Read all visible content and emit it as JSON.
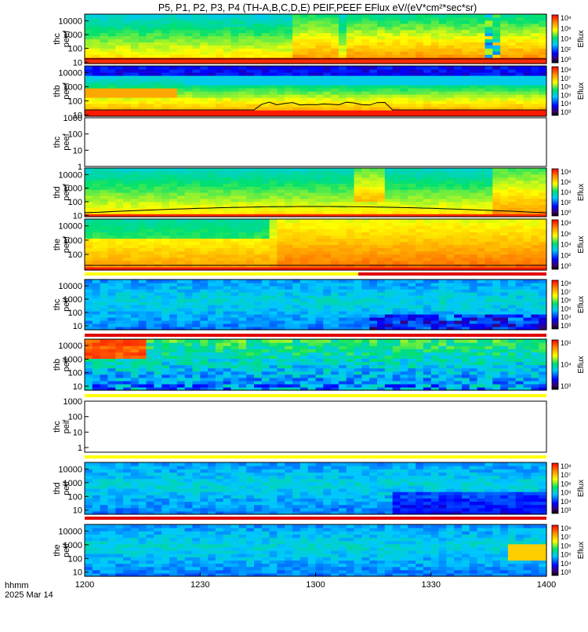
{
  "chart_data": {
    "type": "heatmap",
    "title": "P5, P1, P2, P3, P4 (TH-A,B,C,D,E) PEIF,PEEF EFlux eV/(eV*cm²*sec*sr)",
    "time_axis": {
      "range": [
        "1200",
        "1400"
      ],
      "tick_labels": [
        "1200",
        "1230",
        "1300",
        "1330",
        "1400"
      ],
      "label_line1": "hhmm",
      "label_line2": "2025 Mar 14"
    },
    "colorbar_label": "Eflux",
    "panels": [
      {
        "probe": "thc",
        "product": "peef",
        "yticks": [
          "10000",
          "1000",
          "100",
          "10"
        ],
        "ylim": [
          8,
          30000
        ],
        "has_data": true,
        "cb_ticks": [
          "10⁸",
          "10⁶",
          "10⁴",
          "10²",
          "10⁰"
        ],
        "status_bar": "none"
      },
      {
        "probe": "thb",
        "product": "peef",
        "yticks": [
          "10000",
          "1000",
          "100",
          "10"
        ],
        "ylim": [
          8,
          30000
        ],
        "has_data": true,
        "cb_ticks": [
          "10⁸",
          "10⁷",
          "10⁶",
          "10⁵",
          "10⁴",
          "10³"
        ],
        "status_bar": "none"
      },
      {
        "probe": "thc",
        "product": "peef",
        "yticks": [
          "1000",
          "100",
          "10",
          "1"
        ],
        "ylim": [
          1,
          1000
        ],
        "has_data": false,
        "cb_ticks": [],
        "status_bar": "none"
      },
      {
        "probe": "thd",
        "product": "peef",
        "yticks": [
          "10000",
          "1000",
          "100",
          "10"
        ],
        "ylim": [
          8,
          30000
        ],
        "has_data": true,
        "cb_ticks": [
          "10⁸",
          "10⁶",
          "10⁴",
          "10²",
          "10⁰"
        ],
        "status_bar": "none"
      },
      {
        "probe": "the",
        "product": "peef",
        "yticks": [
          "10000",
          "1000",
          "100"
        ],
        "ylim": [
          8,
          30000
        ],
        "has_data": true,
        "cb_ticks": [
          "10⁸",
          "10⁶",
          "10⁴",
          "10²",
          "10⁰"
        ],
        "status_bar": "partial"
      },
      {
        "probe": "thc",
        "product": "peif",
        "yticks": [
          "10000",
          "1000",
          "100",
          "10"
        ],
        "ylim": [
          5,
          30000
        ],
        "has_data": true,
        "cb_ticks": [
          "10⁸",
          "10⁷",
          "10⁶",
          "10⁵",
          "10⁴",
          "10³"
        ],
        "status_bar": "red"
      },
      {
        "probe": "thb",
        "product": "peif",
        "yticks": [
          "10000",
          "1000",
          "100",
          "10"
        ],
        "ylim": [
          5,
          30000
        ],
        "has_data": true,
        "cb_ticks": [
          "10⁵",
          "10⁴",
          "10³"
        ],
        "status_bar": "yellow"
      },
      {
        "probe": "thc",
        "product": "peif",
        "yticks": [
          "1000",
          "100",
          "10",
          "1"
        ],
        "ylim": [
          0.5,
          1000
        ],
        "has_data": false,
        "cb_ticks": [],
        "status_bar": "yellow"
      },
      {
        "probe": "thd",
        "product": "peif",
        "yticks": [
          "10000",
          "1000",
          "100",
          "10"
        ],
        "ylim": [
          5,
          30000
        ],
        "has_data": true,
        "cb_ticks": [
          "10⁸",
          "10⁷",
          "10⁶",
          "10⁵",
          "10⁴",
          "10³"
        ],
        "status_bar": "red"
      },
      {
        "probe": "the",
        "product": "peif",
        "yticks": [
          "10000",
          "1000",
          "100",
          "10"
        ],
        "ylim": [
          5,
          30000
        ],
        "has_data": true,
        "cb_ticks": [
          "10⁸",
          "10⁷",
          "10⁶",
          "10⁵",
          "10⁴",
          "10³"
        ],
        "status_bar": "none"
      }
    ]
  }
}
